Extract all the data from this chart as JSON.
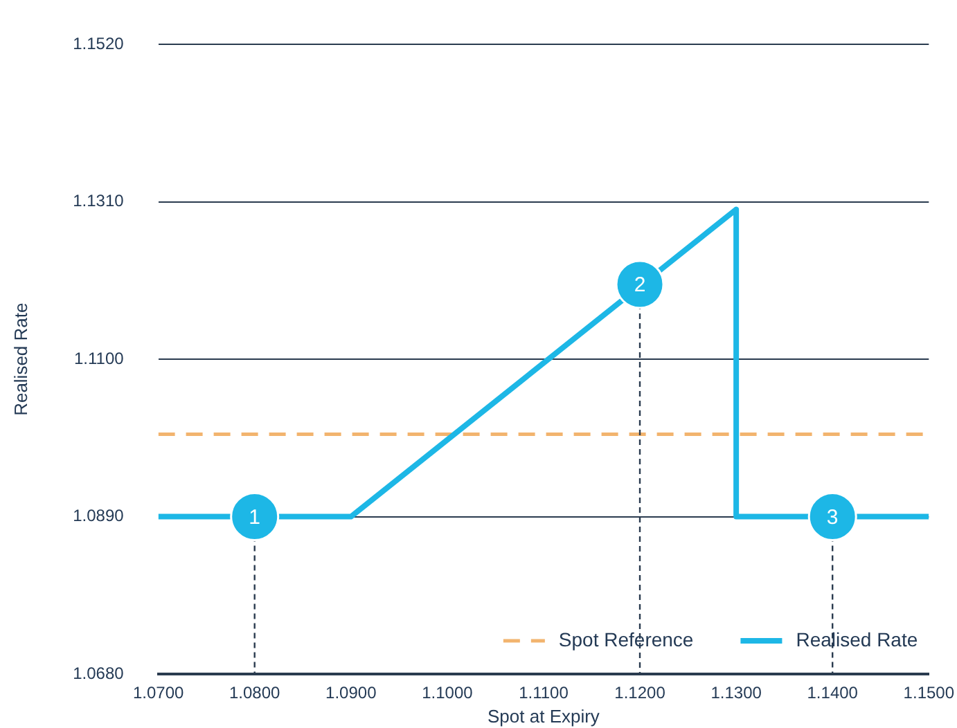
{
  "chart_data": {
    "type": "line",
    "xlabel": "Spot at Expiry",
    "ylabel": "Realised Rate",
    "x": [
      1.07,
      1.09,
      1.13,
      1.13,
      1.15
    ],
    "series": [
      {
        "name": "Realised Rate",
        "color": "#1db7e6",
        "values": [
          1.089,
          1.089,
          1.13,
          1.089,
          1.089
        ]
      }
    ],
    "ref_lines": [
      {
        "axis": "y",
        "value": 1.1,
        "label": "Spot Reference",
        "color": "#f2b46e",
        "line_style": "dashed"
      }
    ],
    "annotations": [
      {
        "text": "1",
        "x": 1.08,
        "y": 1.089
      },
      {
        "text": "2",
        "x": 1.12,
        "y": 1.12
      },
      {
        "text": "3",
        "x": 1.14,
        "y": 1.089
      }
    ],
    "xlim": [
      1.07,
      1.15
    ],
    "xticks": [
      {
        "value": 1.07,
        "label": "1.0700"
      },
      {
        "value": 1.08,
        "label": "1.0800"
      },
      {
        "value": 1.09,
        "label": "1.0900"
      },
      {
        "value": 1.1,
        "label": "1.1000"
      },
      {
        "value": 1.11,
        "label": "1.1100"
      },
      {
        "value": 1.12,
        "label": "1.1200"
      },
      {
        "value": 1.13,
        "label": "1.1300"
      },
      {
        "value": 1.14,
        "label": "1.1400"
      },
      {
        "value": 1.15,
        "label": "1.1500"
      }
    ],
    "ylim": [
      1.068,
      1.152
    ],
    "yticks": [
      {
        "value": 1.068,
        "label": "1.0680"
      },
      {
        "value": 1.089,
        "label": "1.0890"
      },
      {
        "value": 1.11,
        "label": "1.1100"
      },
      {
        "value": 1.131,
        "label": "1.1310"
      },
      {
        "value": 1.152,
        "label": "1.1520"
      }
    ],
    "grid": "y",
    "legend": "bottom right",
    "marker": "none",
    "line_style": "solid"
  }
}
